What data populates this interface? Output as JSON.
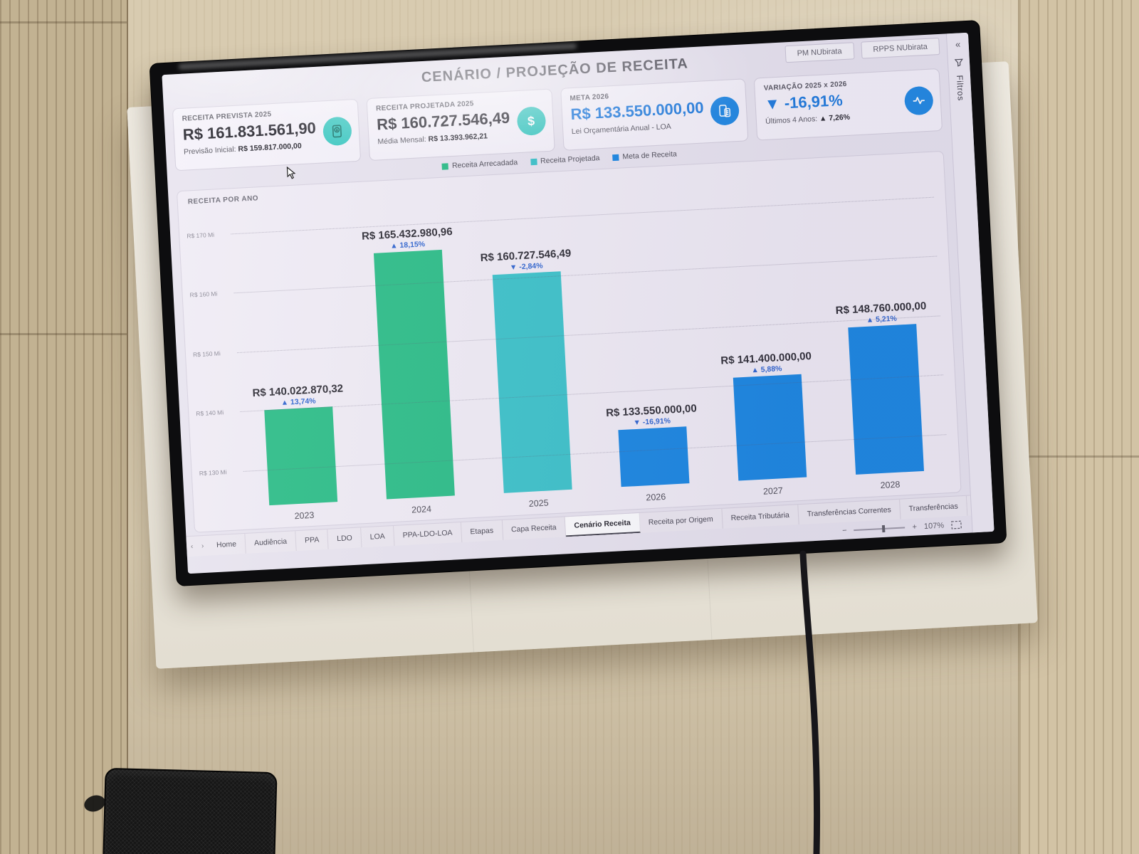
{
  "header": {
    "title": "CENÁRIO / PROJEÇÃO DE RECEITA",
    "buttons": [
      {
        "label": "PM NUbirata"
      },
      {
        "label": "RPPS NUbirata"
      }
    ]
  },
  "kpi_cards": [
    {
      "label": "RECEITA PREVISTA 2025",
      "value": "R$ 161.831.561,90",
      "sub_label": "Previsão Inicial:",
      "sub_value": "R$ 159.817.000,00",
      "icon": "money-report-icon"
    },
    {
      "label": "RECEITA PROJETADA 2025",
      "value": "R$ 160.727.546,49",
      "sub_label": "Média Mensal:",
      "sub_value": "R$ 13.393.962,21",
      "icon": "dollar-icon"
    },
    {
      "label": "META 2026",
      "value": "R$ 133.550.000,00",
      "sub_label": "Lei Orçamentária Anual - LOA",
      "sub_value": "",
      "icon": "calculator-icon"
    },
    {
      "label": "VARIAÇÃO 2025 x 2026",
      "value": "▼ -16,91%",
      "sub_label": "Últimos 4 Anos:",
      "sub_value": "▲ 7,26%",
      "icon": "trend-icon"
    }
  ],
  "legend": [
    {
      "label": "Receita Arrecadada",
      "color": "#27bd85"
    },
    {
      "label": "Receita Projetada",
      "color": "#38c2c9"
    },
    {
      "label": "Meta de Receita",
      "color": "#1585e2"
    }
  ],
  "chart_data": {
    "type": "bar",
    "title": "RECEITA POR ANO",
    "categories": [
      "2023",
      "2024",
      "2025",
      "2026",
      "2027",
      "2028"
    ],
    "bars": [
      {
        "year": "2023",
        "series": "Receita Arrecadada",
        "value_mi": 140.02287032,
        "value_label": "R$ 140.022.870,32",
        "delta_label": "▲ 13,74%"
      },
      {
        "year": "2024",
        "series": "Receita Arrecadada",
        "value_mi": 165.43298096,
        "value_label": "R$ 165.432.980,96",
        "delta_label": "▲ 18,15%"
      },
      {
        "year": "2025",
        "series": "Receita Projetada",
        "value_mi": 160.72754649,
        "value_label": "R$ 160.727.546,49",
        "delta_label": "▼ -2,84%"
      },
      {
        "year": "2026",
        "series": "Meta de Receita",
        "value_mi": 133.55,
        "value_label": "R$ 133.550.000,00",
        "delta_label": "▼ -16,91%"
      },
      {
        "year": "2027",
        "series": "Meta de Receita",
        "value_mi": 141.4,
        "value_label": "R$ 141.400.000,00",
        "delta_label": "▲ 5,88%"
      },
      {
        "year": "2028",
        "series": "Meta de Receita",
        "value_mi": 148.76,
        "value_label": "R$ 148.760.000,00",
        "delta_label": "▲ 5,21%"
      }
    ],
    "y_ticks": [
      {
        "label": "R$ 170 Mi",
        "value_mi": 170
      },
      {
        "label": "R$ 160 Mi",
        "value_mi": 160
      },
      {
        "label": "R$ 150 Mi",
        "value_mi": 150
      },
      {
        "label": "R$ 140 Mi",
        "value_mi": 140
      },
      {
        "label": "R$ 130 Mi",
        "value_mi": 130
      }
    ],
    "ylim_mi": [
      124,
      172
    ],
    "grid": "dotted-horizontal",
    "legend_position": "top"
  },
  "footer": {
    "tabs": [
      "Home",
      "Audiência",
      "PPA",
      "LDO",
      "LOA",
      "PPA-LDO-LOA",
      "Etapas",
      "Capa Receita",
      "Cenário Receita",
      "Receita por Origem",
      "Receita Tributária",
      "Transferências Correntes",
      "Transferências"
    ],
    "active_tab": "Cenário Receita",
    "nav_prev": "‹",
    "nav_next": "›",
    "zoom_minus": "−",
    "zoom_plus": "+",
    "zoom_level": "107%"
  },
  "filter_pane": {
    "collapse_glyph": "«",
    "label": "Filtros"
  }
}
